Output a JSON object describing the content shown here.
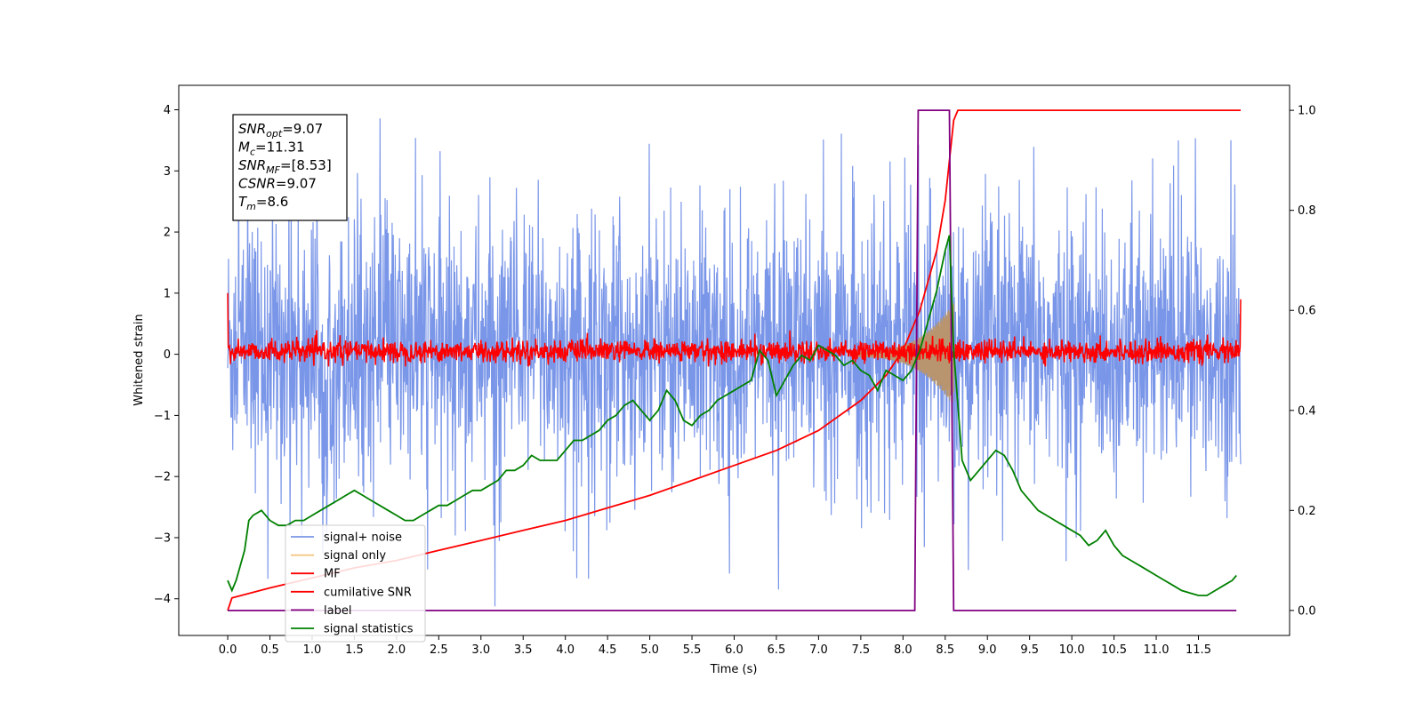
{
  "chart_data": {
    "type": "line",
    "xlabel": "Time (s)",
    "ylabel": "Whitened strain",
    "xlim": [
      -0.58,
      12.58
    ],
    "ylim": [
      -4.6,
      4.4
    ],
    "ylim_right": [
      -0.05,
      1.05
    ],
    "x_ticks": [
      "0.0",
      "0.5",
      "1.0",
      "1.5",
      "2.0",
      "2.5",
      "3.0",
      "3.5",
      "4.0",
      "4.5",
      "5.0",
      "5.5",
      "6.0",
      "6.5",
      "7.0",
      "7.5",
      "8.0",
      "8.5",
      "9.0",
      "9.5",
      "10.0",
      "10.5",
      "11.0",
      "11.5"
    ],
    "y_ticks_left": [
      "−4",
      "−3",
      "−2",
      "−1",
      "0",
      "1",
      "2",
      "3",
      "4"
    ],
    "y_ticks_right": [
      "0.0",
      "0.2",
      "0.4",
      "0.6",
      "0.8",
      "1.0"
    ],
    "legend_placement": "lower-left",
    "grid": false,
    "annotation": {
      "lines": [
        {
          "var": "SNR",
          "sub": "opt",
          "value": "=9.07"
        },
        {
          "var": "M",
          "sub": "c",
          "value": "=11.31"
        },
        {
          "var": "SNR",
          "sub": "MF",
          "value": "=[8.53]"
        },
        {
          "var": "CSNR",
          "sub": "",
          "value": "=9.07"
        },
        {
          "var": "T",
          "sub": "m",
          "value": "=8.6"
        }
      ]
    },
    "series": [
      {
        "name": "signal+ noise",
        "color": "#7a96e8",
        "axis": "left",
        "kind": "noise",
        "x_range": [
          0,
          12
        ],
        "mean": 0.1,
        "extent": [
          -4.2,
          4.0
        ]
      },
      {
        "name": "signal only",
        "color": "#f5c27a",
        "axis": "left",
        "kind": "chirp",
        "x_range": [
          7.4,
          8.6
        ],
        "peak_amplitude": 0.8
      },
      {
        "name": "MF",
        "color": "#ff0000",
        "axis": "left",
        "kind": "noise",
        "x_range": [
          0,
          12
        ],
        "mean": 0.05,
        "extent": [
          -0.2,
          0.45
        ]
      },
      {
        "name": "cumilative SNR",
        "color": "#ff0000",
        "axis": "right",
        "x": [
          0.0,
          0.05,
          0.5,
          1.0,
          1.5,
          2.0,
          2.5,
          3.0,
          3.5,
          4.0,
          4.5,
          5.0,
          5.5,
          6.0,
          6.5,
          7.0,
          7.5,
          7.8,
          8.0,
          8.2,
          8.4,
          8.5,
          8.6,
          8.65,
          12.0
        ],
        "y": [
          0.0,
          0.025,
          0.045,
          0.065,
          0.085,
          0.1,
          0.12,
          0.14,
          0.16,
          0.18,
          0.205,
          0.23,
          0.26,
          0.29,
          0.32,
          0.36,
          0.42,
          0.47,
          0.52,
          0.6,
          0.72,
          0.82,
          0.98,
          1.0,
          1.0
        ]
      },
      {
        "name": "label",
        "color": "#800080",
        "axis": "right",
        "x": [
          0.0,
          8.14,
          8.18,
          8.55,
          8.6,
          11.95
        ],
        "y": [
          0.0,
          0.0,
          1.0,
          1.0,
          0.0,
          0.0
        ]
      },
      {
        "name": "signal statistics",
        "color": "#008000",
        "axis": "right",
        "x": [
          0.0,
          0.05,
          0.1,
          0.2,
          0.25,
          0.3,
          0.4,
          0.5,
          0.6,
          0.7,
          0.8,
          0.9,
          1.0,
          1.1,
          1.2,
          1.3,
          1.4,
          1.5,
          1.6,
          1.7,
          1.8,
          1.9,
          2.0,
          2.1,
          2.2,
          2.3,
          2.4,
          2.5,
          2.6,
          2.7,
          2.8,
          2.9,
          3.0,
          3.1,
          3.2,
          3.3,
          3.4,
          3.5,
          3.6,
          3.7,
          3.8,
          3.9,
          4.0,
          4.1,
          4.2,
          4.3,
          4.4,
          4.5,
          4.6,
          4.7,
          4.8,
          4.9,
          5.0,
          5.1,
          5.2,
          5.3,
          5.4,
          5.5,
          5.6,
          5.7,
          5.8,
          5.9,
          6.0,
          6.1,
          6.2,
          6.3,
          6.4,
          6.5,
          6.6,
          6.7,
          6.8,
          6.9,
          7.0,
          7.1,
          7.2,
          7.3,
          7.4,
          7.5,
          7.6,
          7.7,
          7.8,
          7.9,
          8.0,
          8.1,
          8.2,
          8.3,
          8.4,
          8.5,
          8.55,
          8.6,
          8.7,
          8.8,
          8.9,
          9.0,
          9.1,
          9.2,
          9.3,
          9.4,
          9.5,
          9.6,
          9.7,
          9.8,
          9.9,
          10.0,
          10.1,
          10.2,
          10.3,
          10.4,
          10.5,
          10.6,
          10.7,
          10.8,
          10.9,
          11.0,
          11.1,
          11.2,
          11.3,
          11.4,
          11.5,
          11.6,
          11.7,
          11.8,
          11.9,
          11.95
        ],
        "y": [
          0.06,
          0.04,
          0.06,
          0.12,
          0.18,
          0.19,
          0.2,
          0.18,
          0.17,
          0.17,
          0.18,
          0.18,
          0.19,
          0.2,
          0.21,
          0.22,
          0.23,
          0.24,
          0.23,
          0.22,
          0.21,
          0.2,
          0.19,
          0.18,
          0.18,
          0.19,
          0.2,
          0.21,
          0.21,
          0.22,
          0.23,
          0.24,
          0.24,
          0.25,
          0.26,
          0.28,
          0.28,
          0.29,
          0.31,
          0.3,
          0.3,
          0.3,
          0.32,
          0.34,
          0.34,
          0.35,
          0.36,
          0.38,
          0.39,
          0.41,
          0.42,
          0.4,
          0.38,
          0.4,
          0.44,
          0.42,
          0.38,
          0.37,
          0.39,
          0.4,
          0.42,
          0.43,
          0.44,
          0.45,
          0.46,
          0.52,
          0.5,
          0.43,
          0.46,
          0.49,
          0.51,
          0.5,
          0.53,
          0.52,
          0.51,
          0.49,
          0.5,
          0.48,
          0.47,
          0.44,
          0.48,
          0.47,
          0.46,
          0.48,
          0.52,
          0.58,
          0.64,
          0.72,
          0.75,
          0.52,
          0.3,
          0.26,
          0.28,
          0.3,
          0.32,
          0.31,
          0.28,
          0.24,
          0.22,
          0.2,
          0.19,
          0.18,
          0.17,
          0.16,
          0.15,
          0.13,
          0.14,
          0.16,
          0.13,
          0.11,
          0.1,
          0.09,
          0.08,
          0.07,
          0.06,
          0.05,
          0.04,
          0.035,
          0.03,
          0.03,
          0.04,
          0.05,
          0.06,
          0.07
        ]
      }
    ]
  }
}
